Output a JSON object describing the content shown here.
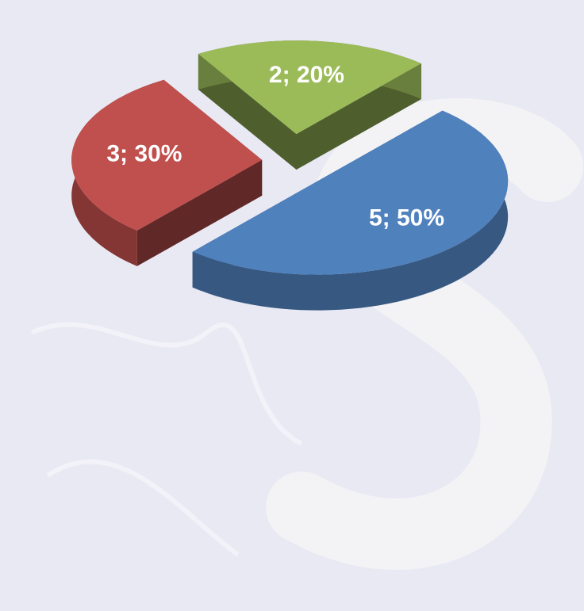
{
  "chart_data": {
    "type": "pie3d",
    "values": [
      5,
      3,
      2
    ],
    "value_labels": [
      "5; 50%",
      "3; 30%",
      "2; 20%"
    ],
    "colors": [
      "#4f81bd",
      "#c0504d",
      "#9bbb59"
    ]
  }
}
